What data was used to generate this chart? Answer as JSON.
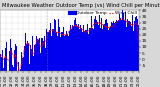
{
  "title": "Milwaukee Weather Outdoor Temp (vs) Wind Chill per Minute (Last 24 Hours)",
  "bg_color": "#d8d8d8",
  "plot_bg_color": "#ffffff",
  "bar_color": "#0000ee",
  "line_color": "#ff0000",
  "n_points": 1440,
  "y_min": -10,
  "y_max": 40,
  "ytick_values": [
    40,
    35,
    30,
    25,
    20,
    15,
    10,
    5,
    0,
    -5
  ],
  "ytick_labels": [
    "40",
    "35",
    "30",
    "25",
    "20",
    "15",
    "10",
    "5",
    "0",
    "-5"
  ],
  "title_fontsize": 3.8,
  "tick_fontsize": 3.2,
  "legend_fontsize": 3.2,
  "seed": 99
}
